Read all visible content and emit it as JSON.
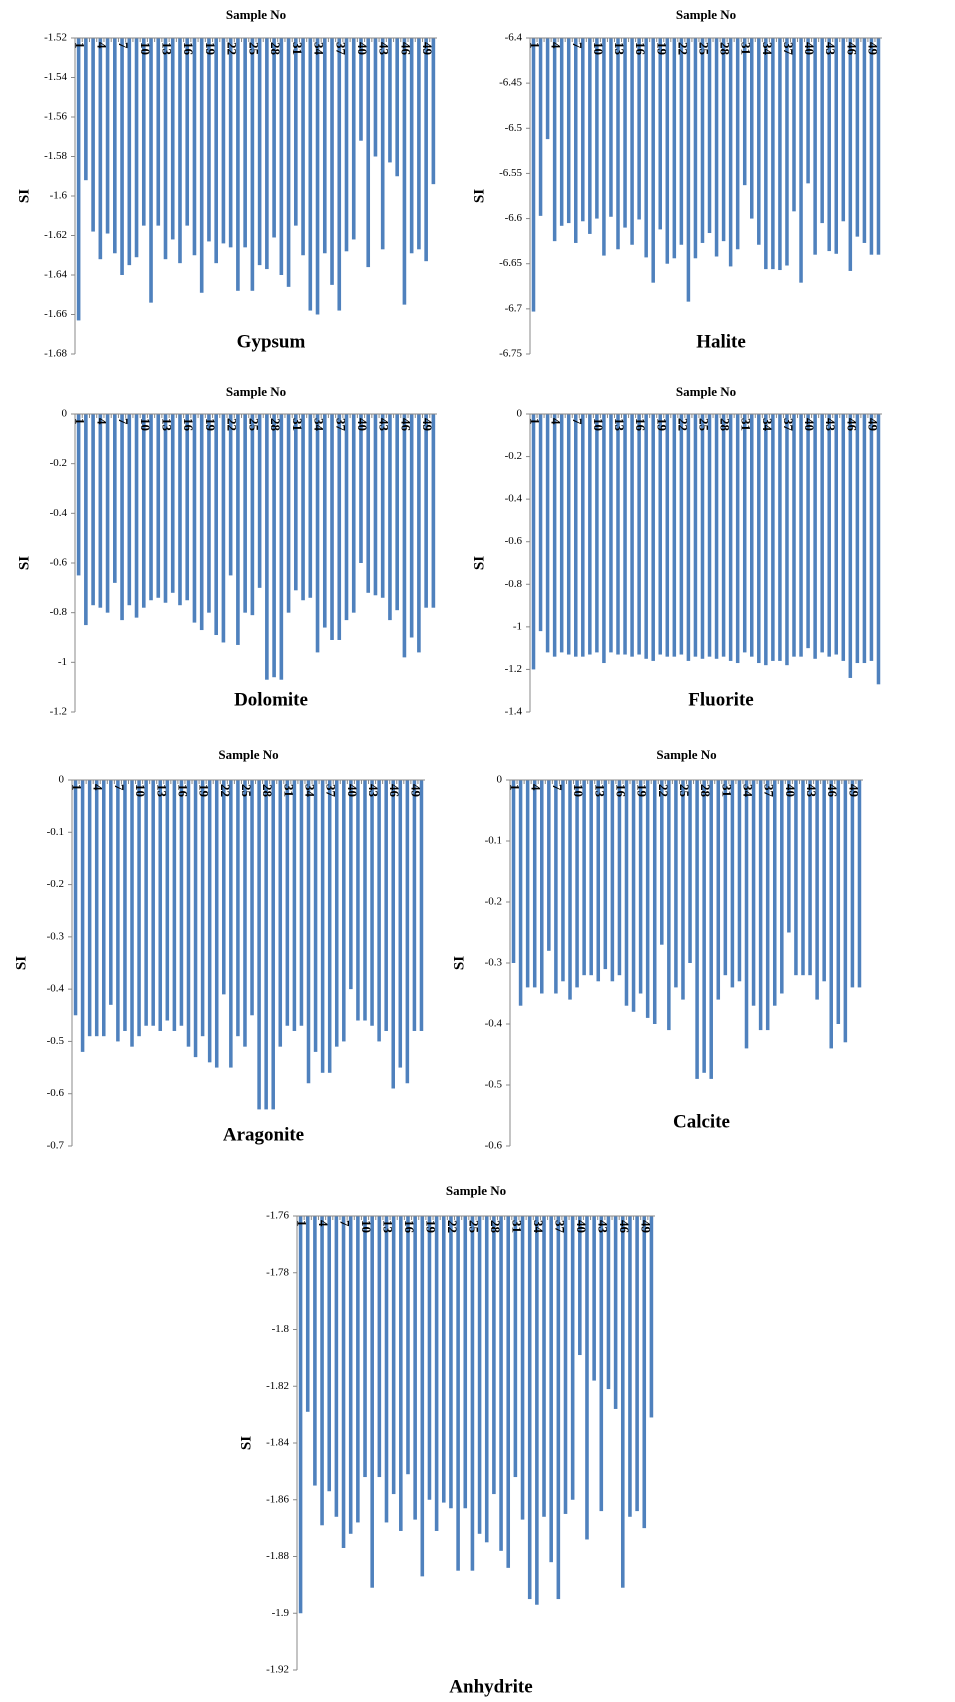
{
  "chart_data": [
    {
      "type": "bar",
      "x_label": "Sample No",
      "y_label": "SI",
      "annotation": "Gypsum",
      "color": "#4f81bd",
      "categories": [
        "1",
        null,
        null,
        "4",
        null,
        null,
        "7",
        null,
        null,
        "10",
        null,
        null,
        "13",
        null,
        null,
        "16",
        null,
        null,
        "19",
        null,
        null,
        "22",
        null,
        null,
        "25",
        null,
        null,
        "28",
        null,
        null,
        "31",
        null,
        null,
        "34",
        null,
        null,
        "37",
        null,
        null,
        "40",
        null,
        null,
        "43",
        null,
        null,
        "46",
        null,
        null,
        "49",
        null
      ],
      "values": [
        -1.663,
        -1.592,
        -1.618,
        -1.632,
        -1.619,
        -1.629,
        -1.64,
        -1.635,
        -1.631,
        -1.615,
        -1.654,
        -1.615,
        -1.632,
        -1.622,
        -1.634,
        -1.615,
        -1.63,
        -1.649,
        -1.623,
        -1.634,
        -1.624,
        -1.626,
        -1.648,
        -1.626,
        -1.648,
        -1.635,
        -1.637,
        -1.621,
        -1.64,
        -1.646,
        -1.615,
        -1.63,
        -1.658,
        -1.66,
        -1.629,
        -1.645,
        -1.658,
        -1.628,
        -1.622,
        -1.572,
        -1.636,
        -1.58,
        -1.627,
        -1.583,
        -1.59,
        -1.655,
        -1.629,
        -1.627,
        -1.633,
        -1.594
      ],
      "ylim": [
        -1.68,
        -1.52
      ],
      "yticks": [
        -1.52,
        -1.54,
        -1.56,
        -1.58,
        -1.6,
        -1.62,
        -1.64,
        -1.66,
        -1.68
      ]
    },
    {
      "type": "bar",
      "x_label": "Sample No",
      "y_label": "SI",
      "annotation": "Halite",
      "color": "#4f81bd",
      "categories": [
        "1",
        null,
        null,
        "4",
        null,
        null,
        "7",
        null,
        null,
        "10",
        null,
        null,
        "13",
        null,
        null,
        "16",
        null,
        null,
        "19",
        null,
        null,
        "22",
        null,
        null,
        "25",
        null,
        null,
        "28",
        null,
        null,
        "31",
        null,
        null,
        "34",
        null,
        null,
        "37",
        null,
        null,
        "40",
        null,
        null,
        "43",
        null,
        null,
        "46",
        null,
        null,
        "49",
        null
      ],
      "values": [
        -6.703,
        -6.597,
        -6.512,
        -6.625,
        -6.608,
        -6.605,
        -6.627,
        -6.603,
        -6.617,
        -6.6,
        -6.641,
        -6.598,
        -6.634,
        -6.61,
        -6.629,
        -6.601,
        -6.643,
        -6.671,
        -6.612,
        -6.65,
        -6.644,
        -6.629,
        -6.692,
        -6.644,
        -6.627,
        -6.616,
        -6.642,
        -6.625,
        -6.653,
        -6.634,
        -6.563,
        -6.6,
        -6.629,
        -6.656,
        -6.656,
        -6.657,
        -6.652,
        -6.592,
        -6.671,
        -6.561,
        -6.64,
        -6.605,
        -6.636,
        -6.639,
        -6.603,
        -6.658,
        -6.62,
        -6.627,
        -6.64,
        -6.64
      ],
      "ylim": [
        -6.75,
        -6.4
      ],
      "yticks": [
        -6.4,
        -6.45,
        -6.5,
        -6.55,
        -6.6,
        -6.65,
        -6.7,
        -6.75
      ]
    },
    {
      "type": "bar",
      "x_label": "Sample No",
      "y_label": "SI",
      "annotation": "Dolomite",
      "color": "#4f81bd",
      "categories": [
        "1",
        null,
        null,
        "4",
        null,
        null,
        "7",
        null,
        null,
        "10",
        null,
        null,
        "13",
        null,
        null,
        "16",
        null,
        null,
        "19",
        null,
        null,
        "22",
        null,
        null,
        "25",
        null,
        null,
        "28",
        null,
        null,
        "31",
        null,
        null,
        "34",
        null,
        null,
        "37",
        null,
        null,
        "40",
        null,
        null,
        "43",
        null,
        null,
        "46",
        null,
        null,
        "49",
        null
      ],
      "values": [
        -0.65,
        -0.85,
        -0.77,
        -0.78,
        -0.8,
        -0.68,
        -0.83,
        -0.77,
        -0.82,
        -0.78,
        -0.75,
        -0.74,
        -0.76,
        -0.72,
        -0.77,
        -0.75,
        -0.84,
        -0.87,
        -0.8,
        -0.89,
        -0.92,
        -0.65,
        -0.93,
        -0.8,
        -0.81,
        -0.7,
        -1.07,
        -1.06,
        -1.07,
        -0.8,
        -0.71,
        -0.75,
        -0.74,
        -0.96,
        -0.86,
        -0.91,
        -0.91,
        -0.83,
        -0.8,
        -0.6,
        -0.72,
        -0.73,
        -0.74,
        -0.83,
        -0.79,
        -0.98,
        -0.9,
        -0.96,
        -0.78,
        -0.78
      ],
      "ylim": [
        -1.2,
        0
      ],
      "yticks": [
        0,
        -0.2,
        -0.4,
        -0.6,
        -0.8,
        -1,
        -1.2
      ]
    },
    {
      "type": "bar",
      "x_label": "Sample No",
      "y_label": "SI",
      "annotation": "Fluorite",
      "color": "#4f81bd",
      "categories": [
        "1",
        null,
        null,
        "4",
        null,
        null,
        "7",
        null,
        null,
        "10",
        null,
        null,
        "13",
        null,
        null,
        "16",
        null,
        null,
        "19",
        null,
        null,
        "22",
        null,
        null,
        "25",
        null,
        null,
        "28",
        null,
        null,
        "31",
        null,
        null,
        "34",
        null,
        null,
        "37",
        null,
        null,
        "40",
        null,
        null,
        "43",
        null,
        null,
        "46",
        null,
        null,
        "49",
        null
      ],
      "values": [
        -1.2,
        -1.02,
        -1.12,
        -1.14,
        -1.12,
        -1.13,
        -1.14,
        -1.14,
        -1.13,
        -1.12,
        -1.17,
        -1.12,
        -1.13,
        -1.13,
        -1.14,
        -1.13,
        -1.15,
        -1.16,
        -1.13,
        -1.14,
        -1.14,
        -1.13,
        -1.16,
        -1.14,
        -1.15,
        -1.14,
        -1.15,
        -1.14,
        -1.16,
        -1.17,
        -1.12,
        -1.14,
        -1.17,
        -1.18,
        -1.16,
        -1.16,
        -1.18,
        -1.14,
        -1.14,
        -1.1,
        -1.15,
        -1.12,
        -1.14,
        -1.13,
        -1.16,
        -1.24,
        -1.17,
        -1.17,
        -1.16,
        -1.27
      ],
      "ylim": [
        -1.4,
        0
      ],
      "yticks": [
        0,
        -0.2,
        -0.4,
        -0.6,
        -0.8,
        -1,
        -1.2,
        -1.4
      ]
    },
    {
      "type": "bar",
      "x_label": "Sample No",
      "y_label": "SI",
      "annotation": "Aragonite",
      "color": "#4f81bd",
      "categories": [
        "1",
        null,
        null,
        "4",
        null,
        null,
        "7",
        null,
        null,
        "10",
        null,
        null,
        "13",
        null,
        null,
        "16",
        null,
        null,
        "19",
        null,
        null,
        "22",
        null,
        null,
        "25",
        null,
        null,
        "28",
        null,
        null,
        "31",
        null,
        null,
        "34",
        null,
        null,
        "37",
        null,
        null,
        "40",
        null,
        null,
        "43",
        null,
        null,
        "46",
        null,
        null,
        "49",
        null
      ],
      "values": [
        -0.45,
        -0.52,
        -0.49,
        -0.49,
        -0.49,
        -0.43,
        -0.5,
        -0.48,
        -0.51,
        -0.49,
        -0.47,
        -0.47,
        -0.48,
        -0.46,
        -0.48,
        -0.47,
        -0.51,
        -0.53,
        -0.49,
        -0.54,
        -0.55,
        -0.41,
        -0.55,
        -0.49,
        -0.51,
        -0.45,
        -0.63,
        -0.63,
        -0.63,
        -0.51,
        -0.47,
        -0.48,
        -0.47,
        -0.58,
        -0.52,
        -0.56,
        -0.56,
        -0.51,
        -0.5,
        -0.4,
        -0.46,
        -0.46,
        -0.47,
        -0.5,
        -0.48,
        -0.59,
        -0.55,
        -0.58,
        -0.48,
        -0.48
      ],
      "ylim": [
        -0.7,
        0
      ],
      "yticks": [
        0,
        -0.1,
        -0.2,
        -0.3,
        -0.4,
        -0.5,
        -0.6,
        -0.7
      ]
    },
    {
      "type": "bar",
      "x_label": "Sample No",
      "y_label": "SI",
      "annotation": "Calcite",
      "color": "#4f81bd",
      "categories": [
        "1",
        null,
        null,
        "4",
        null,
        null,
        "7",
        null,
        null,
        "10",
        null,
        null,
        "13",
        null,
        null,
        "16",
        null,
        null,
        "19",
        null,
        null,
        "22",
        null,
        null,
        "25",
        null,
        null,
        "28",
        null,
        null,
        "31",
        null,
        null,
        "34",
        null,
        null,
        "37",
        null,
        null,
        "40",
        null,
        null,
        "43",
        null,
        null,
        "46",
        null,
        null,
        "49",
        null
      ],
      "values": [
        -0.3,
        -0.37,
        -0.34,
        -0.34,
        -0.35,
        -0.28,
        -0.35,
        -0.33,
        -0.36,
        -0.34,
        -0.32,
        -0.32,
        -0.33,
        -0.31,
        -0.33,
        -0.32,
        -0.37,
        -0.38,
        -0.35,
        -0.39,
        -0.4,
        -0.27,
        -0.41,
        -0.34,
        -0.36,
        -0.3,
        -0.49,
        -0.48,
        -0.49,
        -0.36,
        -0.32,
        -0.34,
        -0.33,
        -0.44,
        -0.37,
        -0.41,
        -0.41,
        -0.37,
        -0.35,
        -0.25,
        -0.32,
        -0.32,
        -0.32,
        -0.36,
        -0.33,
        -0.44,
        -0.4,
        -0.43,
        -0.34,
        -0.34
      ],
      "ylim": [
        -0.6,
        0
      ],
      "yticks": [
        0,
        -0.1,
        -0.2,
        -0.3,
        -0.4,
        -0.5,
        -0.6
      ]
    },
    {
      "type": "bar",
      "x_label": "Sample No",
      "y_label": "SI",
      "annotation": "Anhydrite",
      "color": "#4f81bd",
      "categories": [
        "1",
        null,
        null,
        "4",
        null,
        null,
        "7",
        null,
        null,
        "10",
        null,
        null,
        "13",
        null,
        null,
        "16",
        null,
        null,
        "19",
        null,
        null,
        "22",
        null,
        null,
        "25",
        null,
        null,
        "28",
        null,
        null,
        "31",
        null,
        null,
        "34",
        null,
        null,
        "37",
        null,
        null,
        "40",
        null,
        null,
        "43",
        null,
        null,
        "46",
        null,
        null,
        "49",
        null
      ],
      "values": [
        -1.9,
        -1.829,
        -1.855,
        -1.869,
        -1.857,
        -1.866,
        -1.877,
        -1.872,
        -1.868,
        -1.852,
        -1.891,
        -1.852,
        -1.868,
        -1.858,
        -1.871,
        -1.851,
        -1.867,
        -1.887,
        -1.86,
        -1.871,
        -1.861,
        -1.863,
        -1.885,
        -1.863,
        -1.885,
        -1.872,
        -1.875,
        -1.858,
        -1.878,
        -1.884,
        -1.852,
        -1.867,
        -1.895,
        -1.897,
        -1.866,
        -1.882,
        -1.895,
        -1.865,
        -1.86,
        -1.809,
        -1.874,
        -1.818,
        -1.864,
        -1.821,
        -1.828,
        -1.891,
        -1.866,
        -1.864,
        -1.87,
        -1.831
      ],
      "ylim": [
        -1.92,
        -1.76
      ],
      "yticks": [
        -1.76,
        -1.78,
        -1.8,
        -1.82,
        -1.84,
        -1.86,
        -1.88,
        -1.9,
        -1.92
      ]
    }
  ]
}
